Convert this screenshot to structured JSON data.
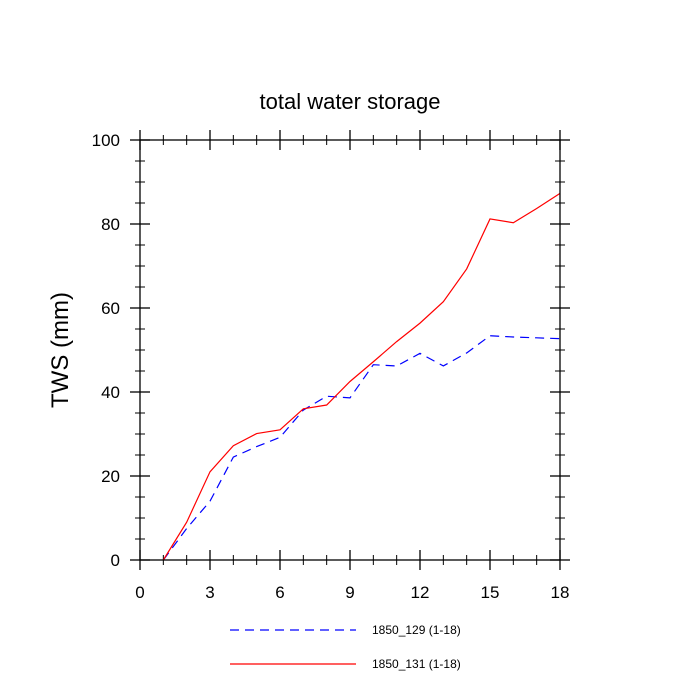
{
  "chart_data": {
    "type": "line",
    "title": "total water storage",
    "xlabel": "",
    "ylabel": "TWS (mm)",
    "xlim": [
      0,
      18
    ],
    "ylim": [
      0,
      100
    ],
    "x_ticks": [
      0,
      3,
      6,
      9,
      12,
      15,
      18
    ],
    "y_ticks": [
      0,
      20,
      40,
      60,
      80,
      100
    ],
    "x_tick_labels": [
      "0",
      "3",
      "6",
      "9",
      "12",
      "15",
      "18"
    ],
    "y_tick_labels": [
      "0",
      "20",
      "40",
      "60",
      "80",
      "100"
    ],
    "x_minor_step": 1,
    "y_minor_step": 5,
    "grid": false,
    "legend_position": "bottom",
    "series": [
      {
        "name": "1850_129 (1-18)",
        "color": "#0000ff",
        "style": "dashed",
        "x": [
          1,
          2,
          3,
          4,
          5,
          6,
          7,
          8,
          9,
          10,
          11,
          12,
          13,
          14,
          15,
          16,
          17,
          18
        ],
        "values": [
          0,
          7.5,
          14,
          24.5,
          27,
          29.2,
          35.7,
          39,
          38.6,
          46.5,
          46.2,
          49.2,
          46.2,
          49.3,
          53.4,
          53.1,
          52.9,
          52.7
        ]
      },
      {
        "name": "1850_131 (1-18)",
        "color": "#ff0000",
        "style": "solid",
        "x": [
          1,
          2,
          3,
          4,
          5,
          6,
          7,
          8,
          9,
          10,
          11,
          12,
          13,
          14,
          15,
          16,
          17,
          18
        ],
        "values": [
          0,
          9,
          21,
          27.2,
          30.1,
          31,
          36,
          36.9,
          42.5,
          47.2,
          52,
          56.4,
          61.5,
          69.3,
          81.2,
          80.3,
          83.7,
          87.3
        ]
      }
    ]
  }
}
